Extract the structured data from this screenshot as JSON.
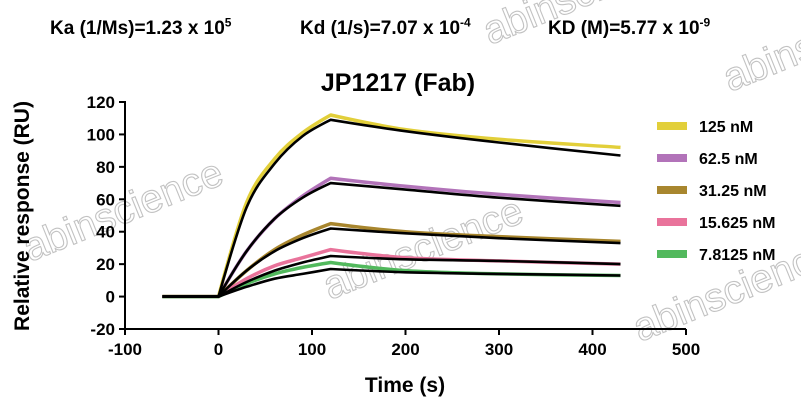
{
  "parameters": {
    "ka": {
      "label": "Ka (1/Ms)=1.23 x 10",
      "exponent": "5"
    },
    "kd": {
      "label": "Kd (1/s)=7.07 x 10",
      "exponent": "-4"
    },
    "KD": {
      "label": "KD (M)=5.77 x 10",
      "exponent": "-9"
    }
  },
  "watermark": "abinscience",
  "chart_data": {
    "type": "line",
    "title": "JP1217 (Fab)",
    "xlabel": "Time (s)",
    "ylabel": "Relative response (RU)",
    "xlim": [
      -100,
      500
    ],
    "ylim": [
      -20,
      120
    ],
    "xticks": [
      "-100",
      "0",
      "100",
      "200",
      "300",
      "400",
      "500"
    ],
    "yticks": [
      "-20",
      "0",
      "20",
      "40",
      "60",
      "80",
      "100",
      "120"
    ],
    "legend_position": "right",
    "association_end_s": 120,
    "series": [
      {
        "name": "125 nM",
        "color": "#e2cf3a",
        "x": [
          -60,
          0,
          30,
          60,
          90,
          120,
          200,
          300,
          430
        ],
        "y": [
          0,
          0,
          58,
          85,
          101,
          112,
          103,
          97,
          92
        ]
      },
      {
        "name": "62.5 nM",
        "color": "#b273b9",
        "x": [
          -60,
          0,
          30,
          60,
          90,
          120,
          200,
          300,
          430
        ],
        "y": [
          0,
          0,
          28,
          48,
          62,
          73,
          68,
          63,
          58
        ]
      },
      {
        "name": "31.25 nM",
        "color": "#a8862e",
        "x": [
          -60,
          0,
          30,
          60,
          90,
          120,
          200,
          300,
          430
        ],
        "y": [
          0,
          0,
          16,
          29,
          38,
          45,
          40,
          37,
          34
        ]
      },
      {
        "name": "15.625 nM",
        "color": "#e9739b",
        "x": [
          -60,
          0,
          30,
          60,
          90,
          120,
          200,
          300,
          430
        ],
        "y": [
          0,
          0,
          11,
          19,
          24,
          29,
          24,
          22,
          20
        ]
      },
      {
        "name": "7.8125 nM",
        "color": "#52b95d",
        "x": [
          -60,
          0,
          30,
          60,
          90,
          120,
          200,
          300,
          430
        ],
        "y": [
          0,
          0,
          8,
          14,
          18,
          21,
          16,
          14,
          13
        ]
      }
    ],
    "fits": [
      {
        "x": [
          -60,
          0,
          30,
          60,
          90,
          120,
          200,
          300,
          430
        ],
        "y": [
          0,
          0,
          55,
          82,
          99,
          109,
          102,
          95,
          87
        ]
      },
      {
        "x": [
          -60,
          0,
          30,
          60,
          90,
          120,
          200,
          300,
          430
        ],
        "y": [
          0,
          0,
          28,
          48,
          61,
          70,
          66,
          61,
          56
        ]
      },
      {
        "x": [
          -60,
          0,
          30,
          60,
          90,
          120,
          200,
          300,
          430
        ],
        "y": [
          0,
          0,
          16,
          28,
          36,
          42,
          39,
          36,
          33
        ]
      },
      {
        "x": [
          -60,
          0,
          30,
          60,
          90,
          120,
          200,
          300,
          430
        ],
        "y": [
          0,
          0,
          9,
          16,
          21,
          25,
          23,
          22,
          20
        ]
      },
      {
        "x": [
          -60,
          0,
          30,
          60,
          90,
          120,
          200,
          300,
          430
        ],
        "y": [
          0,
          0,
          6,
          11,
          14,
          17,
          15,
          14,
          13
        ]
      }
    ]
  }
}
